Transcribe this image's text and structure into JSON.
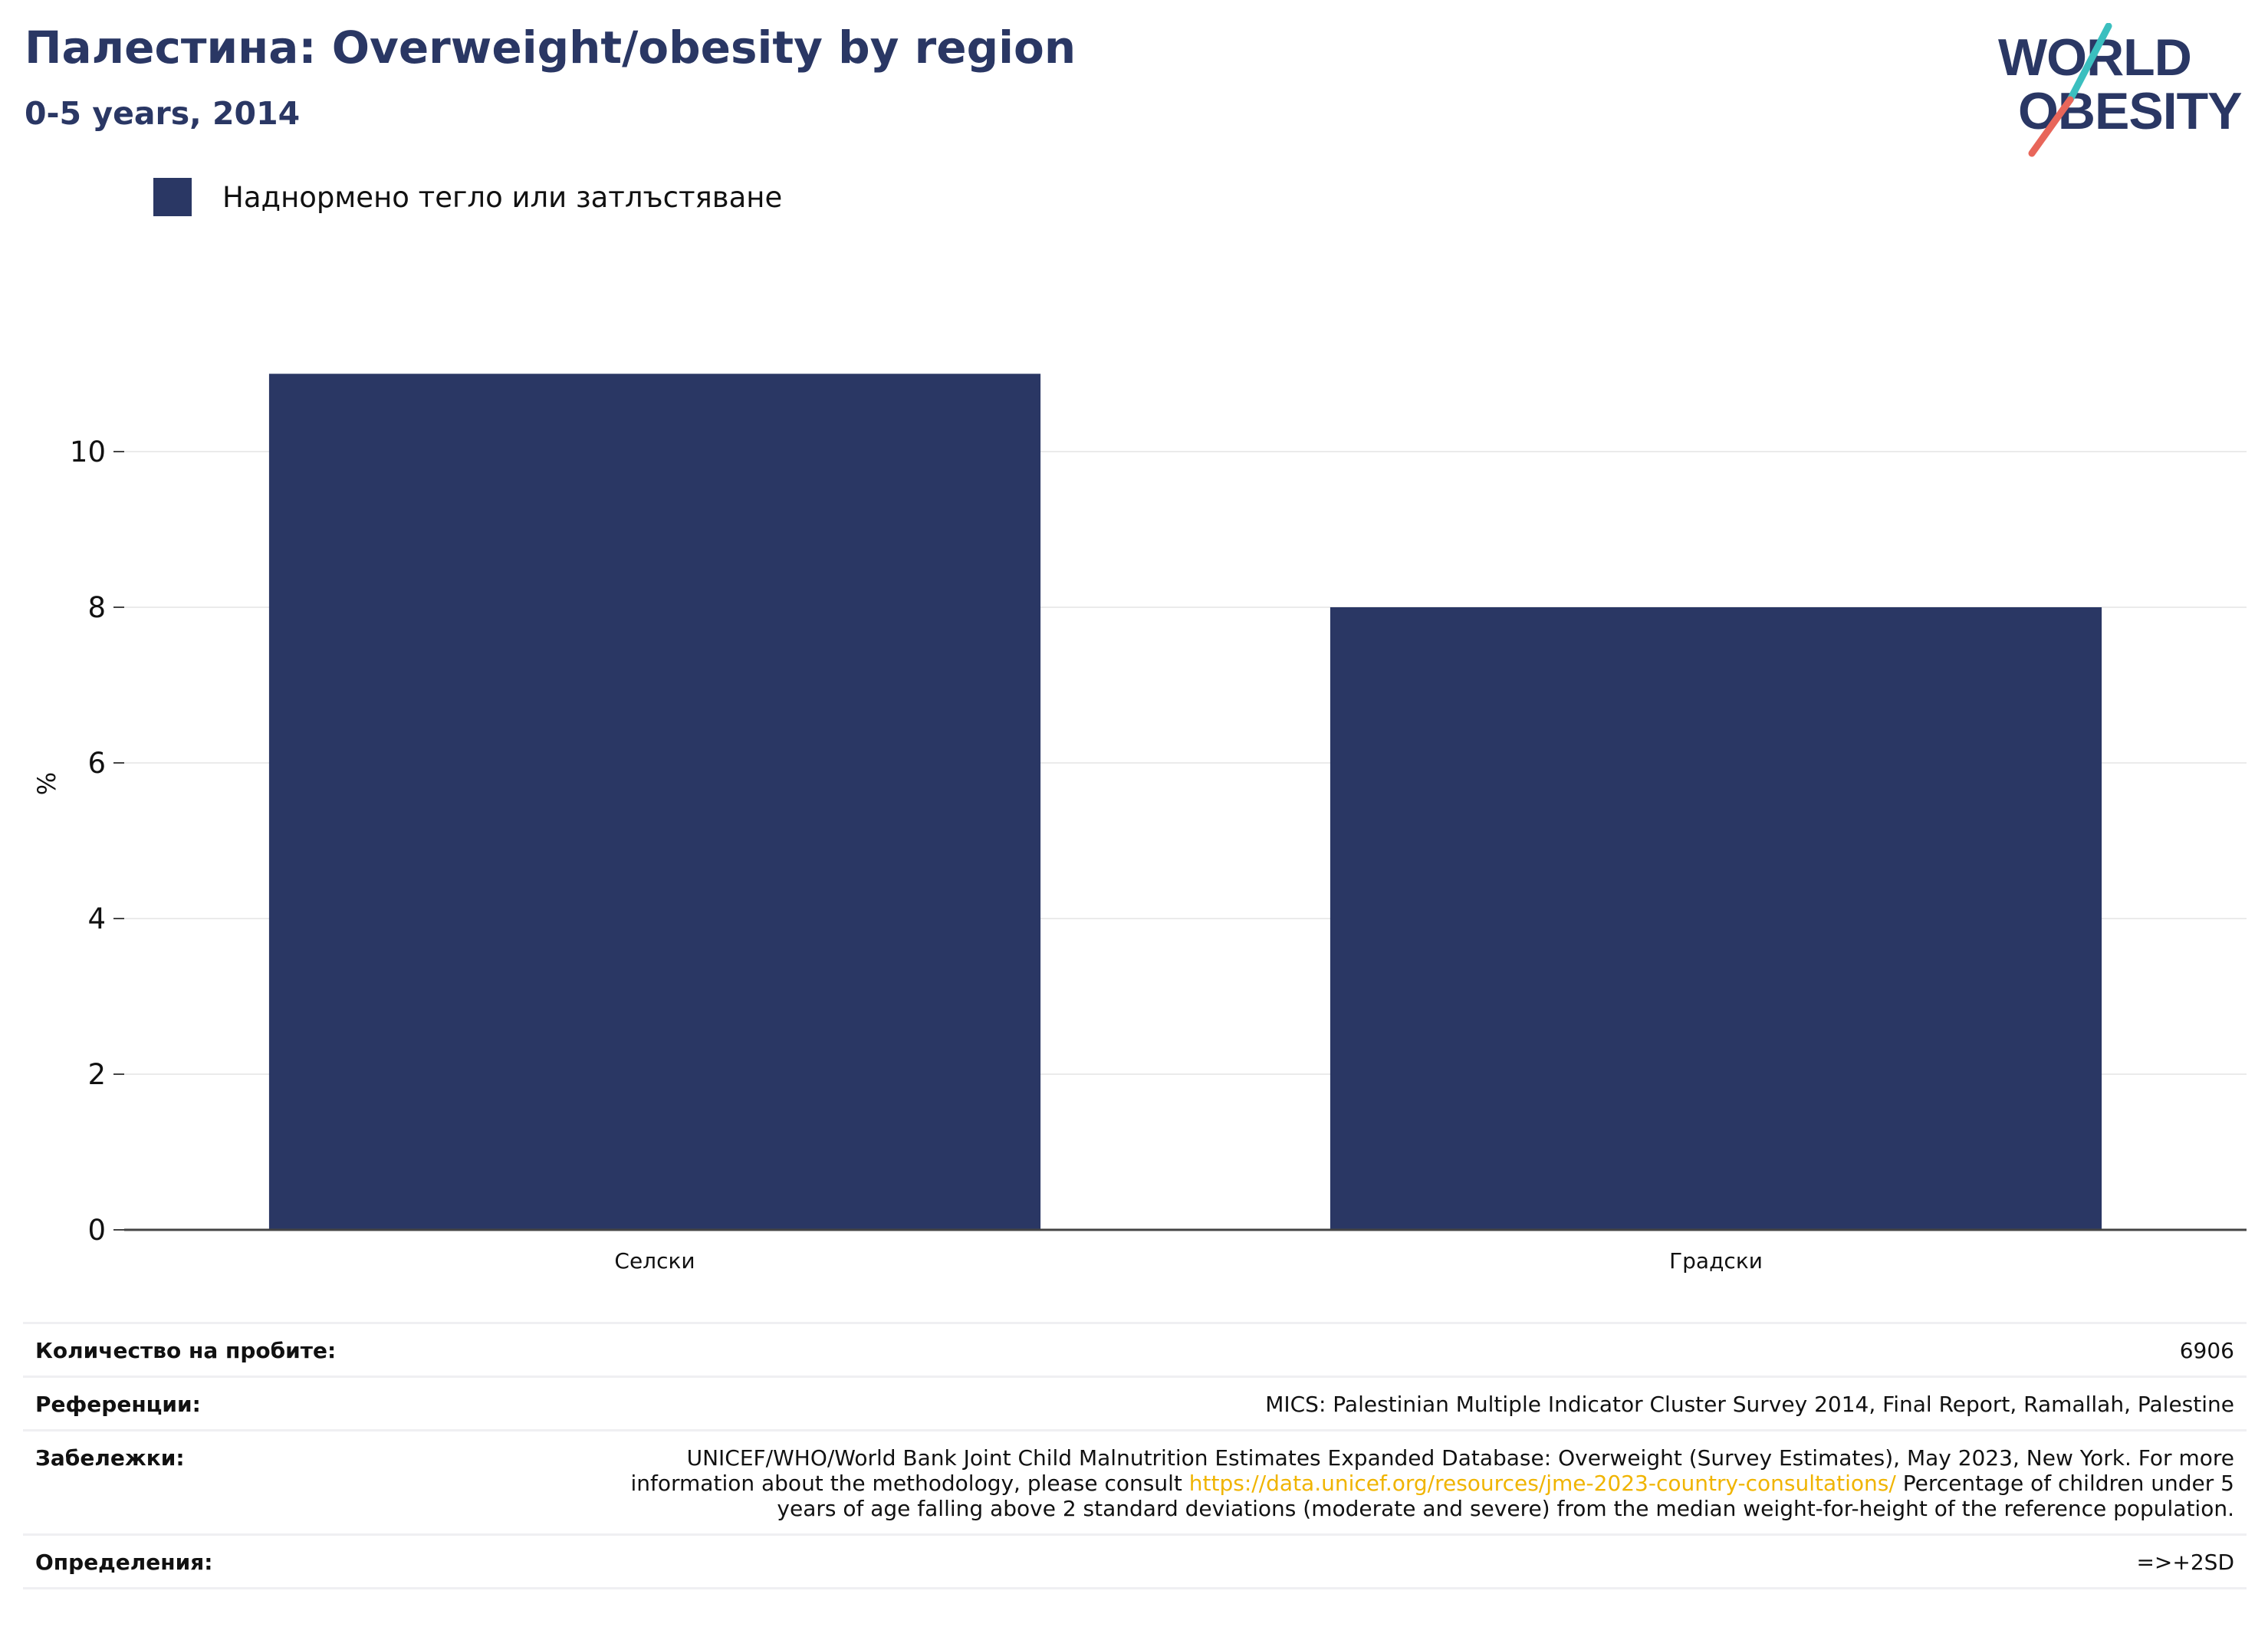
{
  "header": {
    "title": "Палестина: Overweight/obesity by region",
    "subtitle": "0-5 years, 2014"
  },
  "logo": {
    "line1": "WORLD",
    "line2": "OBESITY",
    "colors": {
      "text": "#2a3764",
      "slash_top": "#3bbfbf",
      "slash_bottom": "#e8665a"
    }
  },
  "legend": {
    "label": "Наднормено тегло или затлъстяване",
    "color": "#2a3764"
  },
  "chart_data": {
    "type": "bar",
    "categories": [
      "Селски",
      "Градски"
    ],
    "series": [
      {
        "name": "Наднормено тегло или затлъстяване",
        "values": [
          11.0,
          8.0
        ],
        "color": "#2a3764"
      }
    ],
    "ylabel": "%",
    "xlabel": "",
    "ylim": [
      0,
      12
    ],
    "yticks": [
      0,
      2,
      4,
      6,
      8,
      10
    ],
    "grid": true,
    "legend_position": "top-left"
  },
  "footer": {
    "rows": [
      {
        "label": "Количество на пробите:",
        "value": "6906"
      },
      {
        "label": "Референции:",
        "value": "MICS: Palestinian Multiple Indicator Cluster Survey 2014, Final Report, Ramallah, Palestine"
      },
      {
        "label": "Забележки:",
        "value_before": "UNICEF/WHO/World Bank Joint Child Malnutrition Estimates Expanded Database: Overweight (Survey Estimates), May 2023, New York. For more information about the methodology, please consult ",
        "link": "https://data.unicef.org/resources/jme-2023-country-consultations/",
        "value_after": " Percentage of children under 5 years of age falling above 2 standard deviations (moderate and severe) from the median weight-for-height of the reference population."
      },
      {
        "label": "Определения:",
        "value": "=>+2SD"
      }
    ]
  }
}
